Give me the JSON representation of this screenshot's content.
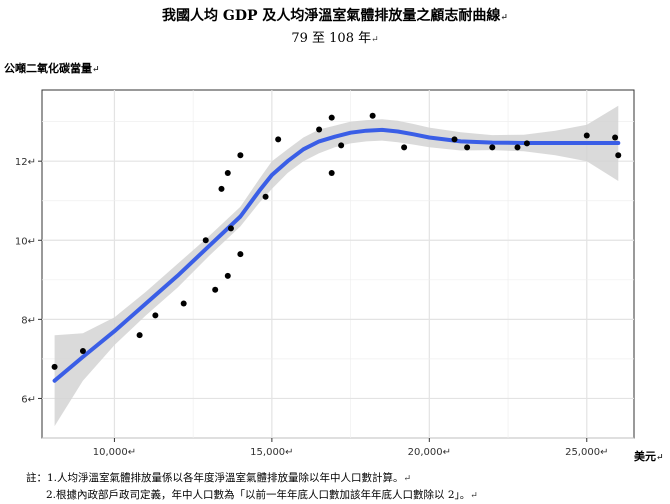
{
  "chart_data": {
    "type": "scatter",
    "title": "我國人均 GDP 及人均淨溫室氣體排放量之顧志耐曲線",
    "subtitle": "79 至 108 年",
    "ylabel": "公噸二氧化碳當量",
    "xlabel": "美元",
    "xlim": [
      7700,
      26500
    ],
    "ylim": [
      5.0,
      13.8
    ],
    "x_ticks": [
      10000,
      15000,
      20000,
      25000
    ],
    "x_tick_labels": [
      "10,000",
      "15,000",
      "20,000",
      "25,000"
    ],
    "y_ticks": [
      6,
      8,
      10,
      12
    ],
    "y_tick_labels": [
      "6",
      "8",
      "10",
      "12"
    ],
    "grid": true,
    "series": [
      {
        "type": "scatter",
        "color": "#000000",
        "points": [
          [
            8100,
            6.8
          ],
          [
            9000,
            7.2
          ],
          [
            10800,
            7.6
          ],
          [
            11300,
            8.1
          ],
          [
            12200,
            8.4
          ],
          [
            12900,
            10.0
          ],
          [
            13200,
            8.75
          ],
          [
            13400,
            11.3
          ],
          [
            13600,
            11.7
          ],
          [
            13600,
            9.1
          ],
          [
            13700,
            10.3
          ],
          [
            14000,
            12.15
          ],
          [
            14000,
            9.65
          ],
          [
            14800,
            11.1
          ],
          [
            15200,
            12.55
          ],
          [
            16500,
            12.8
          ],
          [
            16900,
            13.1
          ],
          [
            16900,
            11.7
          ],
          [
            17200,
            12.4
          ],
          [
            18200,
            13.15
          ],
          [
            19200,
            12.35
          ],
          [
            20800,
            12.55
          ],
          [
            21200,
            12.35
          ],
          [
            22000,
            12.35
          ],
          [
            22800,
            12.35
          ],
          [
            23100,
            12.45
          ],
          [
            25000,
            12.65
          ],
          [
            25900,
            12.6
          ],
          [
            26000,
            12.15
          ]
        ]
      },
      {
        "type": "smooth",
        "color": "#3a5ee6",
        "band_color": "#d3d3d3",
        "x": [
          8100,
          9000,
          10000,
          11000,
          12000,
          13000,
          14000,
          14600,
          15000,
          15500,
          16000,
          16500,
          17000,
          17500,
          18000,
          18500,
          19000,
          19500,
          20000,
          21000,
          22000,
          23000,
          24000,
          25000,
          26000
        ],
        "y": [
          6.45,
          7.05,
          7.7,
          8.4,
          9.1,
          9.85,
          10.6,
          11.25,
          11.65,
          12.0,
          12.3,
          12.5,
          12.62,
          12.72,
          12.77,
          12.79,
          12.75,
          12.68,
          12.6,
          12.5,
          12.47,
          12.46,
          12.46,
          12.46,
          12.46
        ],
        "lower": [
          5.3,
          6.45,
          7.35,
          8.1,
          8.8,
          9.6,
          10.35,
          10.95,
          11.3,
          11.7,
          12.0,
          12.2,
          12.35,
          12.45,
          12.5,
          12.52,
          12.48,
          12.42,
          12.35,
          12.27,
          12.28,
          12.25,
          12.15,
          12.0,
          11.5
        ],
        "upper": [
          7.6,
          7.65,
          8.05,
          8.7,
          9.4,
          10.1,
          10.85,
          11.55,
          12.0,
          12.3,
          12.6,
          12.8,
          12.9,
          13.0,
          13.04,
          13.06,
          13.02,
          12.94,
          12.85,
          12.73,
          12.66,
          12.67,
          12.77,
          12.92,
          13.4
        ]
      }
    ]
  },
  "notes": {
    "note1": "註：1.人均淨溫室氣體排放量係以各年度淨溫室氣體排放量除以年中人口數計算。",
    "note2": "2.根據內政部戶政司定義，年中人口數為「以前一年年底人口數加該年年底人口數除以 2」。"
  },
  "marks": {
    "para": "↵"
  }
}
